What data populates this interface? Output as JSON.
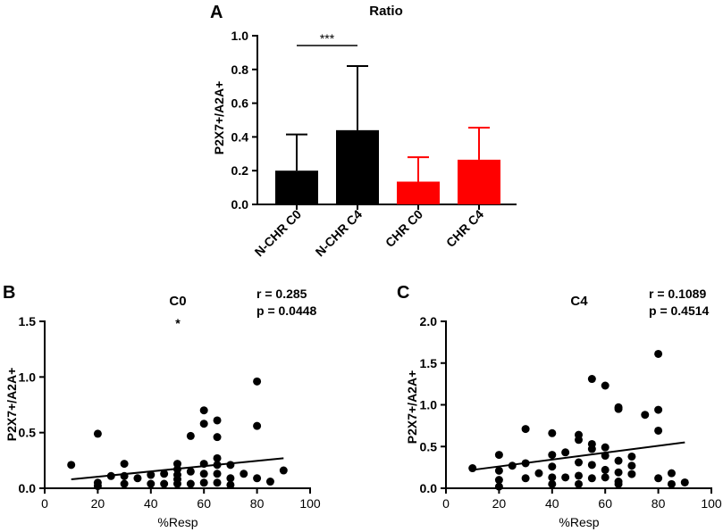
{
  "chart_data": [
    {
      "panel": "A",
      "type": "bar",
      "title": "Ratio",
      "ylabel": "P2X7+/A2A+",
      "xlabel": "",
      "ylim": [
        0,
        1.0
      ],
      "yticks": [
        "0.0",
        "0.2",
        "0.4",
        "0.6",
        "0.8",
        "1.0"
      ],
      "categories": [
        "N-CHR C0",
        "N-CHR C4",
        "CHR C0",
        "CHR C4"
      ],
      "values": [
        0.2,
        0.44,
        0.135,
        0.265
      ],
      "errors": [
        0.215,
        0.38,
        0.145,
        0.19
      ],
      "colors": [
        "#000000",
        "#000000",
        "#ff0000",
        "#ff0000"
      ],
      "significance": {
        "from": 0,
        "to": 1,
        "label": "***"
      }
    },
    {
      "panel": "B",
      "type": "scatter",
      "title": "C0",
      "xlabel": "%Resp",
      "ylabel": "P2X7+/A2A+",
      "xlim": [
        0,
        100
      ],
      "ylim": [
        0,
        1.5
      ],
      "xticks": [
        "0",
        "20",
        "40",
        "60",
        "80",
        "100"
      ],
      "yticks": [
        "0.0",
        "0.5",
        "1.0",
        "1.5"
      ],
      "stats": {
        "r": "r = 0.285",
        "p": "p = 0.0448"
      },
      "significance": "*",
      "points": [
        [
          10,
          0.21
        ],
        [
          20,
          0.49
        ],
        [
          20,
          0.05
        ],
        [
          20,
          0.02
        ],
        [
          25,
          0.11
        ],
        [
          30,
          0.22
        ],
        [
          30,
          0.11
        ],
        [
          30,
          0.04
        ],
        [
          35,
          0.09
        ],
        [
          40,
          0.12
        ],
        [
          40,
          0.04
        ],
        [
          45,
          0.13
        ],
        [
          45,
          0.04
        ],
        [
          50,
          0.22
        ],
        [
          50,
          0.17
        ],
        [
          50,
          0.12
        ],
        [
          50,
          0.08
        ],
        [
          50,
          0.04
        ],
        [
          55,
          0.47
        ],
        [
          55,
          0.15
        ],
        [
          55,
          0.04
        ],
        [
          60,
          0.7
        ],
        [
          60,
          0.58
        ],
        [
          60,
          0.22
        ],
        [
          60,
          0.13
        ],
        [
          60,
          0.05
        ],
        [
          65,
          0.61
        ],
        [
          65,
          0.46
        ],
        [
          65,
          0.27
        ],
        [
          65,
          0.21
        ],
        [
          65,
          0.13
        ],
        [
          65,
          0.05
        ],
        [
          70,
          0.21
        ],
        [
          70,
          0.09
        ],
        [
          70,
          0.03
        ],
        [
          75,
          0.13
        ],
        [
          80,
          0.96
        ],
        [
          80,
          0.56
        ],
        [
          80,
          0.09
        ],
        [
          85,
          0.06
        ],
        [
          90,
          0.16
        ]
      ],
      "fit_line": {
        "x": [
          10,
          90
        ],
        "y": [
          0.08,
          0.27
        ]
      }
    },
    {
      "panel": "C",
      "type": "scatter",
      "title": "C4",
      "xlabel": "%Resp",
      "ylabel": "P2X7+/A2A+",
      "xlim": [
        0,
        100
      ],
      "ylim": [
        0,
        2.0
      ],
      "xticks": [
        "0",
        "20",
        "40",
        "60",
        "80",
        "100"
      ],
      "yticks": [
        "0.0",
        "0.5",
        "1.0",
        "1.5",
        "2.0"
      ],
      "stats": {
        "r": "r = 0.1089",
        "p": "p = 0.4514"
      },
      "points": [
        [
          10,
          0.24
        ],
        [
          20,
          0.4
        ],
        [
          20,
          0.21
        ],
        [
          20,
          0.1
        ],
        [
          20,
          0.02
        ],
        [
          25,
          0.27
        ],
        [
          30,
          0.71
        ],
        [
          30,
          0.3
        ],
        [
          30,
          0.12
        ],
        [
          35,
          0.18
        ],
        [
          40,
          0.66
        ],
        [
          40,
          0.4
        ],
        [
          40,
          0.26
        ],
        [
          40,
          0.13
        ],
        [
          40,
          0.05
        ],
        [
          45,
          0.43
        ],
        [
          45,
          0.13
        ],
        [
          50,
          0.64
        ],
        [
          50,
          0.58
        ],
        [
          50,
          0.31
        ],
        [
          50,
          0.15
        ],
        [
          50,
          0.05
        ],
        [
          55,
          1.31
        ],
        [
          55,
          0.53
        ],
        [
          55,
          0.47
        ],
        [
          55,
          0.28
        ],
        [
          55,
          0.12
        ],
        [
          60,
          1.23
        ],
        [
          60,
          0.49
        ],
        [
          60,
          0.39
        ],
        [
          60,
          0.22
        ],
        [
          60,
          0.13
        ],
        [
          65,
          0.97
        ],
        [
          65,
          0.95
        ],
        [
          65,
          0.33
        ],
        [
          65,
          0.19
        ],
        [
          65,
          0.08
        ],
        [
          65,
          0.05
        ],
        [
          70,
          0.38
        ],
        [
          70,
          0.27
        ],
        [
          70,
          0.17
        ],
        [
          75,
          0.88
        ],
        [
          80,
          1.61
        ],
        [
          80,
          0.94
        ],
        [
          80,
          0.69
        ],
        [
          80,
          0.12
        ],
        [
          85,
          0.18
        ],
        [
          85,
          0.05
        ],
        [
          90,
          0.07
        ]
      ],
      "fit_line": {
        "x": [
          10,
          90
        ],
        "y": [
          0.22,
          0.55
        ]
      }
    }
  ]
}
